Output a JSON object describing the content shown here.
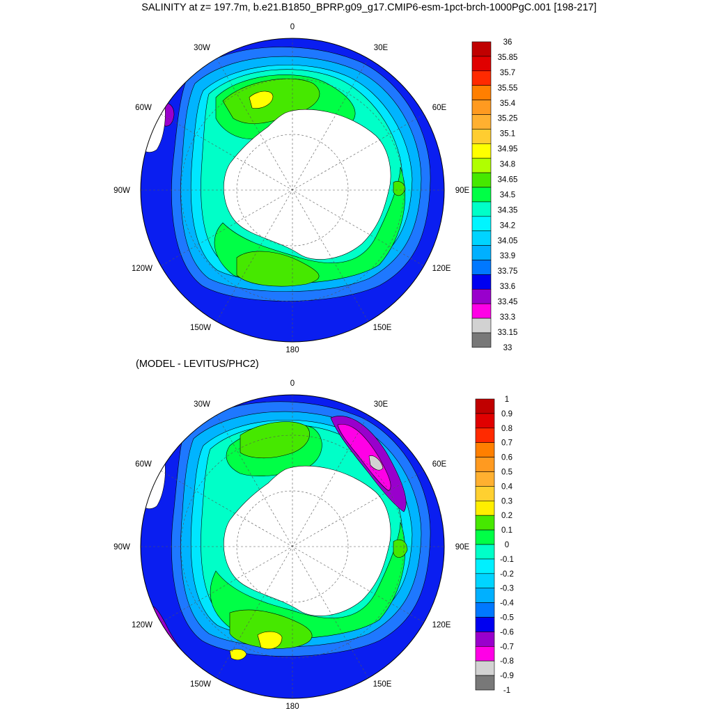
{
  "title": "SALINITY at z= 197.7m, b.e21.B1850_BPRP.g09_g17.CMIP6-esm-1pct-brch-1000PgC.001 [198-217]",
  "subtitle": "(MODEL - LEVITUS/PHC2)",
  "longitude_labels": [
    "0",
    "30E",
    "60E",
    "90E",
    "120E",
    "150E",
    "180",
    "150W",
    "120W",
    "90W",
    "60W",
    "30W"
  ],
  "top_colorbar": {
    "labels": [
      "36",
      "35.85",
      "35.7",
      "35.55",
      "35.4",
      "35.25",
      "35.1",
      "34.95",
      "34.8",
      "34.65",
      "34.5",
      "34.35",
      "34.2",
      "34.05",
      "33.9",
      "33.75",
      "33.6",
      "33.45",
      "33.3",
      "33.15",
      "33"
    ],
    "colors": [
      "#c00000",
      "#e00000",
      "#ff2a00",
      "#ff7f00",
      "#ff9a20",
      "#ffb030",
      "#ffcd30",
      "#ffff00",
      "#b0ff00",
      "#46e800",
      "#00ff46",
      "#00ffc8",
      "#00f5ff",
      "#00d4ff",
      "#00b0ff",
      "#0078ff",
      "#0000f0",
      "#9900cc",
      "#ff00e6",
      "#d2d2d2",
      "#787878"
    ]
  },
  "bottom_colorbar": {
    "labels": [
      "1",
      "0.9",
      "0.8",
      "0.7",
      "0.6",
      "0.5",
      "0.4",
      "0.3",
      "0.2",
      "0.1",
      "0",
      "-0.1",
      "-0.2",
      "-0.3",
      "-0.4",
      "-0.5",
      "-0.6",
      "-0.7",
      "-0.8",
      "-0.9",
      "-1"
    ],
    "colors": [
      "#c00000",
      "#e00000",
      "#ff2a00",
      "#ff7f00",
      "#ff9a20",
      "#ffb030",
      "#ffd030",
      "#ffee00",
      "#46e800",
      "#00ff46",
      "#00ffc8",
      "#00f0ff",
      "#00d4ff",
      "#00b0ff",
      "#0078ff",
      "#0000f0",
      "#9900cc",
      "#ff00e6",
      "#d2d2d2",
      "#787878"
    ]
  },
  "map_colors": {
    "land": "#ffffff",
    "deep_blue": "#0a1ef0",
    "mid_blue": "#1e78ff",
    "light_blue": "#00b4ff",
    "cyan": "#00e6ff",
    "aqua": "#00ffc8",
    "green": "#00ff46",
    "lime": "#46e800",
    "yellow": "#ffff00",
    "purple": "#9900cc",
    "magenta": "#ff00e6",
    "grey": "#d2d2d2"
  }
}
